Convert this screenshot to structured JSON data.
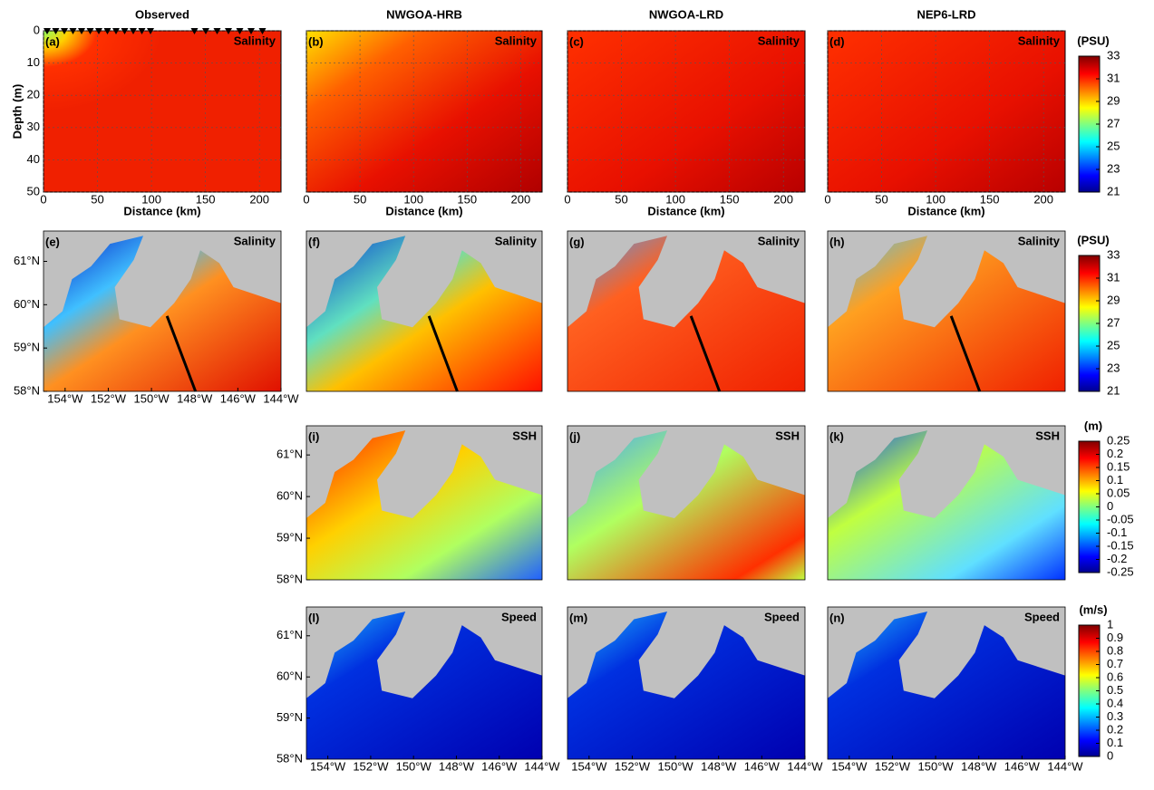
{
  "columns": [
    "Observed",
    "NWGOA-HRB",
    "NWGOA-LRD",
    "NEP6-LRD"
  ],
  "section_axis": {
    "x_label": "Distance (km)",
    "y_label": "Depth (m)",
    "xlim": [
      0,
      220
    ],
    "xticks": [
      0,
      50,
      100,
      150,
      200
    ],
    "ylim": [
      0,
      50
    ],
    "yticks": [
      0,
      10,
      20,
      30,
      40,
      50
    ]
  },
  "map_axis": {
    "latlim": [
      58,
      61.7
    ],
    "latticks": [
      {
        "value": 58,
        "label": "58°N"
      },
      {
        "value": 59,
        "label": "59°N"
      },
      {
        "value": 60,
        "label": "60°N"
      },
      {
        "value": 61,
        "label": "61°N"
      }
    ],
    "lonlim": [
      -155,
      -144
    ],
    "lonticks": [
      {
        "value": -154,
        "label": "154°W"
      },
      {
        "value": -152,
        "label": "152°W"
      },
      {
        "value": -150,
        "label": "150°W"
      },
      {
        "value": -148,
        "label": "148°W"
      },
      {
        "value": -146,
        "label": "146°W"
      },
      {
        "value": -144,
        "label": "144°W"
      }
    ]
  },
  "rows": [
    {
      "panels": [
        {
          "label": "(a)",
          "field": "Salinity"
        },
        {
          "label": "(b)",
          "field": "Salinity"
        },
        {
          "label": "(c)",
          "field": "Salinity"
        },
        {
          "label": "(d)",
          "field": "Salinity"
        }
      ],
      "colorbar": {
        "unit": "(PSU)",
        "lim": [
          21,
          33
        ],
        "ticks": [
          21,
          23,
          25,
          27,
          29,
          31,
          33
        ]
      }
    },
    {
      "panels": [
        {
          "label": "(e)",
          "field": "Salinity"
        },
        {
          "label": "(f)",
          "field": "Salinity"
        },
        {
          "label": "(g)",
          "field": "Salinity"
        },
        {
          "label": "(h)",
          "field": "Salinity"
        }
      ],
      "colorbar": {
        "unit": "(PSU)",
        "lim": [
          21,
          33
        ],
        "ticks": [
          21,
          23,
          25,
          27,
          29,
          31,
          33
        ]
      }
    },
    {
      "panels": [
        {
          "label": "(i)",
          "field": "SSH"
        },
        {
          "label": "(j)",
          "field": "SSH"
        },
        {
          "label": "(k)",
          "field": "SSH"
        }
      ],
      "colorbar": {
        "unit": "(m)",
        "lim": [
          -0.25,
          0.25
        ],
        "ticks": [
          -0.25,
          -0.2,
          -0.15,
          -0.1,
          -0.05,
          0,
          0.05,
          0.1,
          0.15,
          0.2,
          0.25
        ]
      }
    },
    {
      "panels": [
        {
          "label": "(l)",
          "field": "Speed"
        },
        {
          "label": "(m)",
          "field": "Speed"
        },
        {
          "label": "(n)",
          "field": "Speed"
        }
      ],
      "colorbar": {
        "unit": "(m/s)",
        "lim": [
          0,
          1
        ],
        "ticks": [
          0,
          0.1,
          0.2,
          0.3,
          0.4,
          0.5,
          0.6,
          0.7,
          0.8,
          0.9,
          1
        ]
      }
    }
  ]
}
